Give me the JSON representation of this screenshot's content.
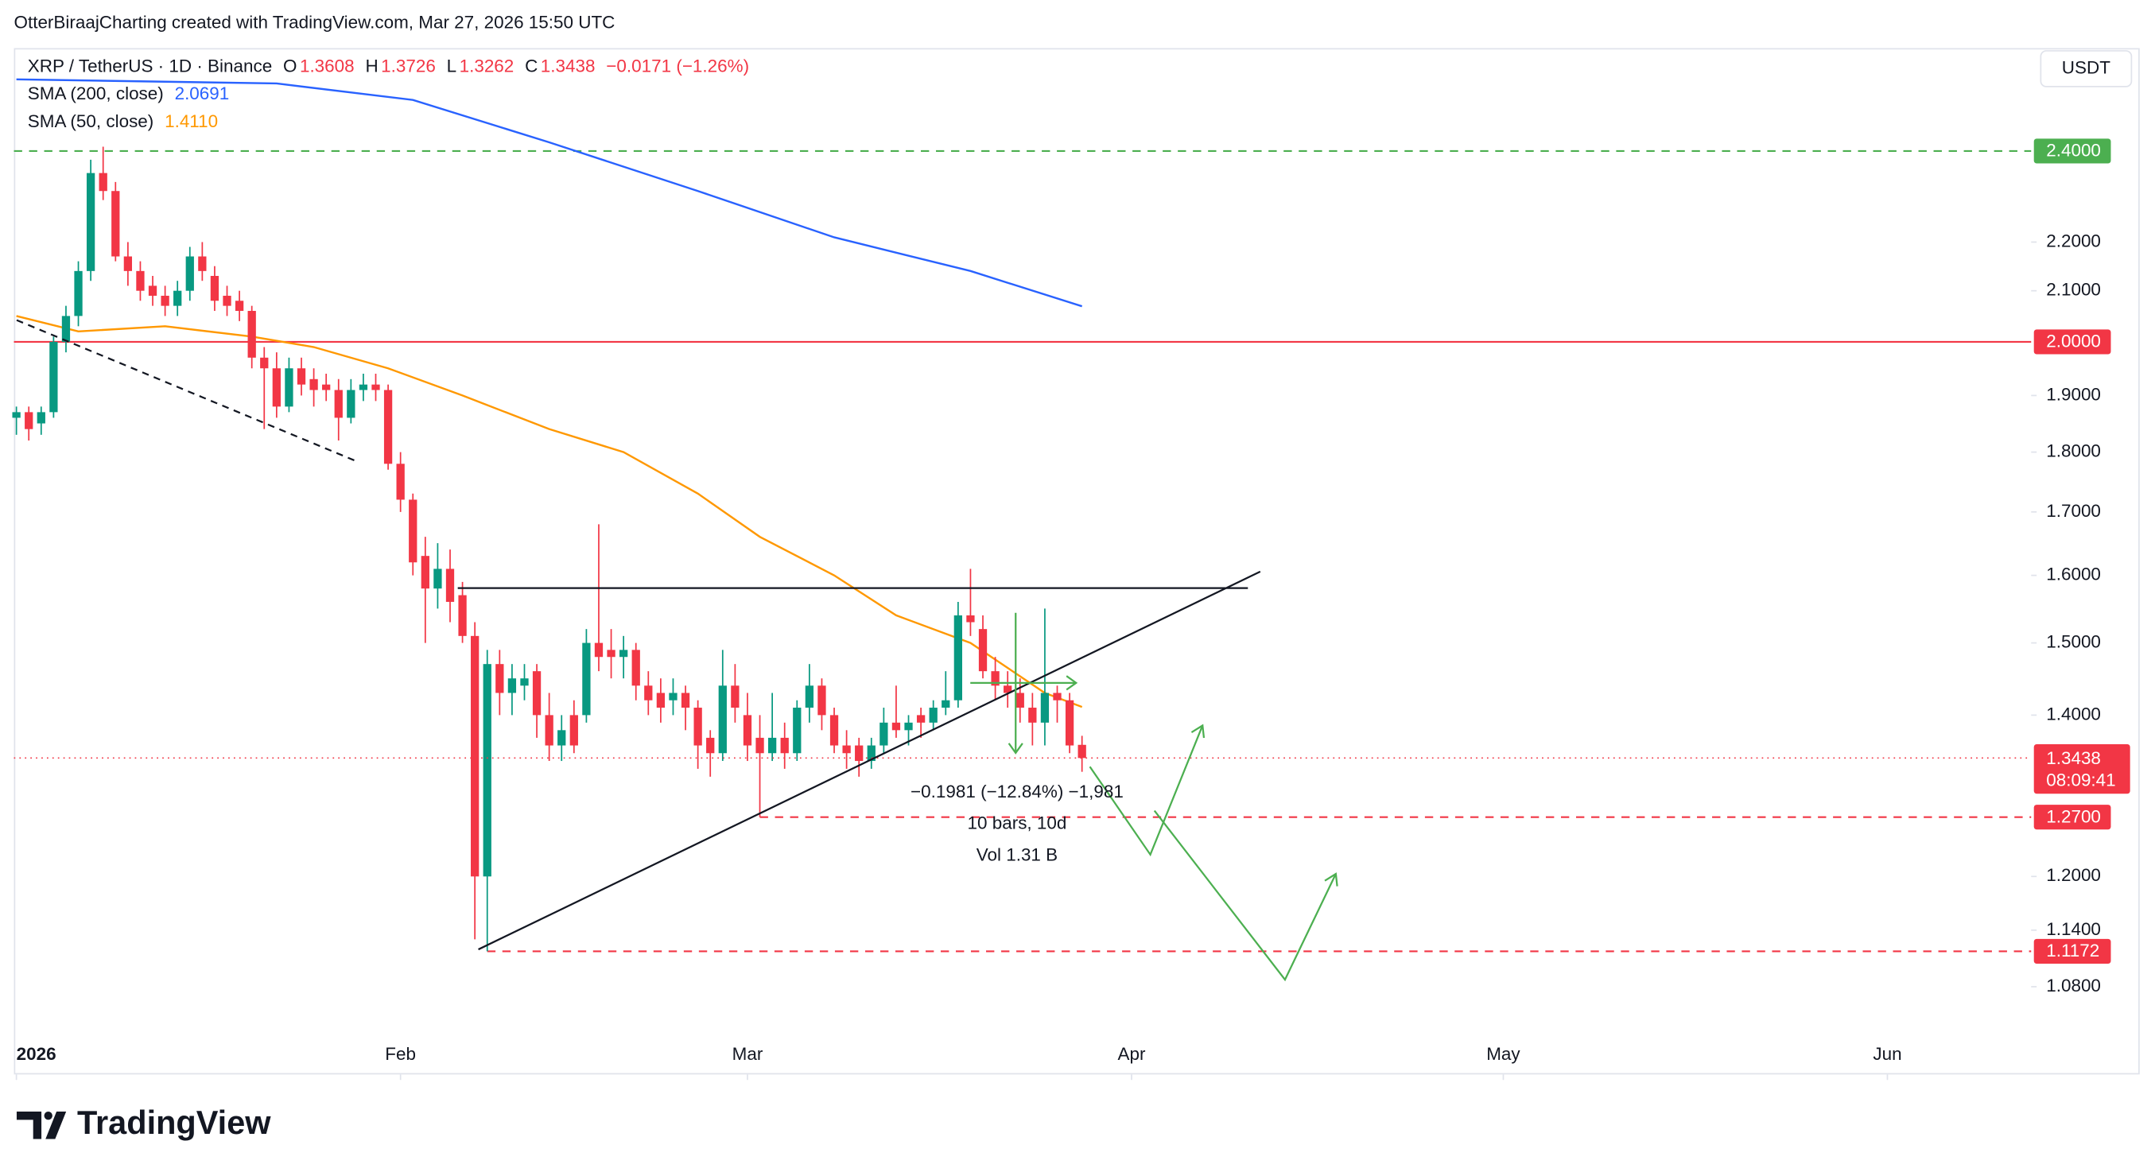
{
  "header": {
    "attribution": "OtterBiraajCharting created with TradingView.com, Mar 27, 2026 15:50 UTC"
  },
  "chart_data": {
    "type": "candlestick",
    "symbol": "XRP / TetherUS · 1D · Binance",
    "ohlc_legend": [
      {
        "key": "O",
        "value": 1.3608
      },
      {
        "key": "H",
        "value": 1.3726
      },
      {
        "key": "L",
        "value": 1.3262
      },
      {
        "key": "C",
        "value": 1.3438
      }
    ],
    "change": "−0.0171 (−1.26%)",
    "currency": "USDT",
    "up_color": "#089981",
    "down_color": "#f23645",
    "open": [
      1.86,
      1.87,
      1.85,
      1.87,
      2.0,
      2.05,
      2.14,
      2.35,
      2.31,
      2.17,
      2.14,
      2.11,
      2.09,
      2.07,
      2.1,
      2.17,
      2.13,
      2.09,
      2.08,
      2.06,
      1.97,
      1.95,
      1.88,
      1.95,
      1.93,
      1.92,
      1.91,
      1.86,
      1.91,
      1.92,
      1.91,
      1.78,
      1.72,
      1.63,
      1.58,
      1.61,
      1.57,
      1.51,
      1.2,
      1.47,
      1.43,
      1.44,
      1.46,
      1.4,
      1.36,
      1.4,
      1.4,
      1.5,
      1.49,
      1.48,
      1.49,
      1.44,
      1.43,
      1.42,
      1.43,
      1.41,
      1.37,
      1.35,
      1.44,
      1.4,
      1.37,
      1.35,
      1.37,
      1.35,
      1.41,
      1.44,
      1.4,
      1.36,
      1.36,
      1.34,
      1.36,
      1.39,
      1.38,
      1.4,
      1.39,
      1.41,
      1.42,
      1.54,
      1.52,
      1.46,
      1.44,
      1.43,
      1.41,
      1.39,
      1.43,
      1.42,
      1.3608
    ],
    "high": [
      1.88,
      1.88,
      1.88,
      2.01,
      2.07,
      2.16,
      2.38,
      2.41,
      2.33,
      2.2,
      2.16,
      2.13,
      2.11,
      2.12,
      2.19,
      2.2,
      2.15,
      2.11,
      2.1,
      2.07,
      1.99,
      1.98,
      1.97,
      1.97,
      1.95,
      1.94,
      1.93,
      1.93,
      1.94,
      1.94,
      1.92,
      1.8,
      1.73,
      1.66,
      1.65,
      1.64,
      1.59,
      1.53,
      1.49,
      1.49,
      1.47,
      1.47,
      1.47,
      1.43,
      1.4,
      1.42,
      1.52,
      1.68,
      1.52,
      1.51,
      1.5,
      1.46,
      1.45,
      1.45,
      1.44,
      1.42,
      1.38,
      1.49,
      1.47,
      1.43,
      1.4,
      1.43,
      1.39,
      1.42,
      1.47,
      1.45,
      1.41,
      1.38,
      1.37,
      1.37,
      1.41,
      1.44,
      1.4,
      1.41,
      1.42,
      1.46,
      1.56,
      1.61,
      1.54,
      1.48,
      1.46,
      1.45,
      1.43,
      1.55,
      1.44,
      1.43,
      1.3726
    ],
    "low": [
      1.83,
      1.82,
      1.83,
      1.86,
      1.98,
      2.03,
      2.12,
      2.29,
      2.16,
      2.11,
      2.08,
      2.07,
      2.05,
      2.05,
      2.08,
      2.12,
      2.06,
      2.05,
      2.04,
      1.95,
      1.84,
      1.86,
      1.87,
      1.9,
      1.88,
      1.89,
      1.82,
      1.85,
      1.89,
      1.89,
      1.77,
      1.7,
      1.6,
      1.5,
      1.55,
      1.53,
      1.5,
      1.13,
      1.1172,
      1.4,
      1.4,
      1.42,
      1.37,
      1.34,
      1.34,
      1.35,
      1.39,
      1.46,
      1.45,
      1.45,
      1.42,
      1.4,
      1.39,
      1.4,
      1.38,
      1.33,
      1.32,
      1.34,
      1.39,
      1.34,
      1.27,
      1.34,
      1.33,
      1.34,
      1.39,
      1.38,
      1.35,
      1.33,
      1.32,
      1.33,
      1.35,
      1.37,
      1.36,
      1.37,
      1.38,
      1.4,
      1.41,
      1.51,
      1.45,
      1.42,
      1.41,
      1.39,
      1.36,
      1.36,
      1.39,
      1.35,
      1.3262
    ],
    "close": [
      1.87,
      1.84,
      1.87,
      2.0,
      2.05,
      2.14,
      2.35,
      2.31,
      2.17,
      2.14,
      2.1,
      2.09,
      2.07,
      2.1,
      2.17,
      2.14,
      2.08,
      2.07,
      2.06,
      1.97,
      1.95,
      1.88,
      1.95,
      1.92,
      1.91,
      1.91,
      1.86,
      1.91,
      1.92,
      1.91,
      1.78,
      1.72,
      1.62,
      1.58,
      1.61,
      1.56,
      1.51,
      1.2,
      1.47,
      1.43,
      1.45,
      1.45,
      1.4,
      1.36,
      1.38,
      1.36,
      1.5,
      1.48,
      1.48,
      1.49,
      1.44,
      1.42,
      1.41,
      1.43,
      1.41,
      1.36,
      1.35,
      1.44,
      1.41,
      1.36,
      1.35,
      1.37,
      1.35,
      1.41,
      1.44,
      1.4,
      1.36,
      1.35,
      1.34,
      1.36,
      1.39,
      1.38,
      1.39,
      1.39,
      1.41,
      1.42,
      1.54,
      1.53,
      1.46,
      1.44,
      1.43,
      1.41,
      1.39,
      1.43,
      1.42,
      1.36,
      1.3438
    ],
    "indicators": [
      {
        "name": "SMA (200, close)",
        "value_label": "2.0691",
        "color": "#2962ff",
        "x": [
          0,
          21,
          32,
          43,
          55,
          66,
          77,
          86
        ],
        "values": [
          2.57,
          2.56,
          2.52,
          2.42,
          2.31,
          2.21,
          2.14,
          2.0691
        ]
      },
      {
        "name": "SMA (50, close)",
        "value_label": "1.4110",
        "color": "#ff9800",
        "x": [
          0,
          5,
          12,
          19,
          24,
          30,
          36,
          43,
          49,
          55,
          60,
          66,
          71,
          77,
          83,
          86
        ],
        "values": [
          2.05,
          2.02,
          2.03,
          2.01,
          1.99,
          1.95,
          1.9,
          1.84,
          1.8,
          1.73,
          1.66,
          1.6,
          1.54,
          1.5,
          1.43,
          1.411
        ]
      }
    ],
    "log_scale": true,
    "ylim": [
      1.029,
      2.648
    ],
    "yticks": [
      {
        "value": 2.2,
        "label": "2.2000"
      },
      {
        "value": 2.1,
        "label": "2.1000"
      },
      {
        "value": 1.9,
        "label": "1.9000"
      },
      {
        "value": 1.8,
        "label": "1.8000"
      },
      {
        "value": 1.7,
        "label": "1.7000"
      },
      {
        "value": 1.6,
        "label": "1.6000"
      },
      {
        "value": 1.5,
        "label": "1.5000"
      },
      {
        "value": 1.4,
        "label": "1.4000"
      },
      {
        "value": 1.2,
        "label": "1.2000"
      },
      {
        "value": 1.14,
        "label": "1.1400"
      },
      {
        "value": 1.08,
        "label": "1.0800"
      }
    ],
    "xlim": [
      -0.2,
      162.6
    ],
    "xticks": [
      {
        "value": 0,
        "label": "2026"
      },
      {
        "value": 31,
        "label": "Feb"
      },
      {
        "value": 59,
        "label": "Mar"
      },
      {
        "value": 90,
        "label": "Apr"
      },
      {
        "value": 120,
        "label": "May"
      },
      {
        "value": 151,
        "label": "Jun"
      }
    ],
    "levels": [
      {
        "value": 2.4,
        "label": "2.4000",
        "color": "#4caf50",
        "style": "dashed"
      },
      {
        "value": 2.0,
        "label": "2.0000",
        "color": "#f23645",
        "style": "solid"
      },
      {
        "value": 1.27,
        "label": "1.2700",
        "color": "#f23645",
        "style": "dashed"
      },
      {
        "value": 1.1172,
        "label": "1.1172",
        "color": "#f23645",
        "style": "dashed"
      }
    ],
    "last_price": {
      "value": 1.3438,
      "countdown": "08:09:41",
      "color": "#f23645"
    },
    "measurement": [
      "−0.1981 (−12.84%) −1,981",
      "10 bars, 10d",
      "Vol 1.31 B"
    ],
    "grid": false
  },
  "footer": {
    "brand": "TradingView"
  }
}
